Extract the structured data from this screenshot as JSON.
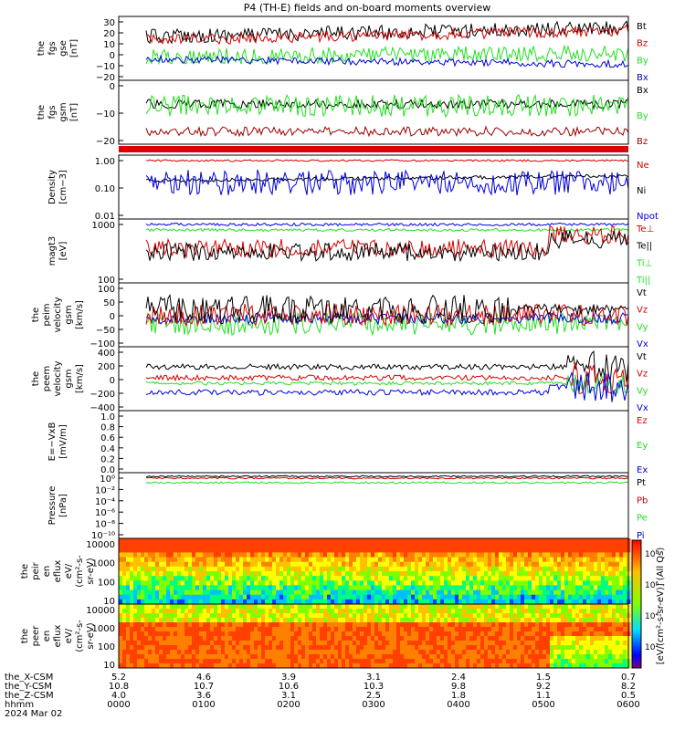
{
  "title": "P4 (TH-E) fields and on-board moments overview",
  "colors": {
    "black": "#000000",
    "red": "#d40000",
    "green": "#22e022",
    "blue": "#0000dd",
    "darkred": "#990000"
  },
  "chart_data": [
    {
      "type": "line",
      "ylabel": [
        "the",
        "fgs",
        "gse",
        "[nT]"
      ],
      "yticks": [
        "30",
        "20",
        "10",
        "0",
        "−10",
        "−20"
      ],
      "ylim": [
        -22,
        33
      ],
      "series": [
        {
          "name": "Bt",
          "color": "black"
        },
        {
          "name": "Bz",
          "color": "red"
        },
        {
          "name": "By",
          "color": "green"
        },
        {
          "name": "Bx",
          "color": "blue"
        }
      ]
    },
    {
      "type": "line",
      "ylabel": [
        "the",
        "fgs",
        "gsm",
        "[nT]"
      ],
      "yticks": [
        "0",
        "−10",
        "−20"
      ],
      "ylim": [
        -27,
        12
      ],
      "series": [
        {
          "name": "Bx",
          "color": "black"
        },
        {
          "name": "By",
          "color": "green"
        },
        {
          "name": "Bz",
          "color": "darkred"
        }
      ]
    },
    {
      "type": "line",
      "ylabel": [
        "Density",
        "[cm−3]"
      ],
      "yticks": [
        "1.00",
        "0.10",
        "0.01"
      ],
      "yscale": "log",
      "ylim": [
        0.004,
        4
      ],
      "series": [
        {
          "name": "Ne",
          "color": "red"
        },
        {
          "name": "Ni",
          "color": "black"
        },
        {
          "name": "Npot",
          "color": "blue"
        }
      ]
    },
    {
      "type": "line",
      "ylabel": [
        "magt3",
        "[eV]"
      ],
      "yticks": [
        "1000",
        "100"
      ],
      "yscale": "log",
      "ylim": [
        60,
        40000
      ],
      "series": [
        {
          "name": "Te⊥",
          "color": "red"
        },
        {
          "name": "Te||",
          "color": "black"
        },
        {
          "name": "Ti⊥",
          "color": "green"
        },
        {
          "name": "Ti||",
          "color": "green"
        }
      ]
    },
    {
      "type": "line",
      "ylabel": [
        "the",
        "peim",
        "velocity",
        "gsm",
        "[km/s]"
      ],
      "yticks": [
        "100",
        "50",
        "0",
        "−50",
        "−100"
      ],
      "ylim": [
        -110,
        140
      ],
      "series": [
        {
          "name": "Vt",
          "color": "black"
        },
        {
          "name": "Vz",
          "color": "red"
        },
        {
          "name": "Vy",
          "color": "green"
        },
        {
          "name": "Vx",
          "color": "blue"
        }
      ]
    },
    {
      "type": "line",
      "ylabel": [
        "the",
        "peem",
        "velocity",
        "gsm",
        "[km/s]"
      ],
      "yticks": [
        "400",
        "200",
        "0",
        "−200",
        "−400"
      ],
      "ylim": [
        -420,
        440
      ],
      "series": [
        {
          "name": "Vt",
          "color": "black"
        },
        {
          "name": "Vz",
          "color": "red"
        },
        {
          "name": "Vy",
          "color": "green"
        },
        {
          "name": "Vx",
          "color": "blue"
        }
      ]
    },
    {
      "type": "line",
      "ylabel": [
        "E=−VxB",
        "[mV/m]"
      ],
      "yticks": [
        "1.0",
        "0.8",
        "0.6",
        "0.4",
        "0.2",
        "0.0"
      ],
      "ylim": [
        0,
        1
      ],
      "series": [
        {
          "name": "Ez",
          "color": "red"
        },
        {
          "name": "Ey",
          "color": "green"
        },
        {
          "name": "Ex",
          "color": "blue"
        }
      ]
    },
    {
      "type": "line",
      "ylabel": [
        "Pressure",
        "[nPa]"
      ],
      "yticks": [
        "10⁰",
        "10⁻²",
        "10⁻⁴",
        "10⁻⁶",
        "10⁻⁸",
        "10⁻¹⁰"
      ],
      "yscale": "log",
      "series": [
        {
          "name": "Pt",
          "color": "black"
        },
        {
          "name": "Pb",
          "color": "red"
        },
        {
          "name": "Pe",
          "color": "green"
        },
        {
          "name": "Pi",
          "color": "blue"
        }
      ]
    },
    {
      "type": "heatmap",
      "ylabel": [
        "the",
        "peir",
        "en",
        "eflux",
        "eV/",
        "(cm²-s-",
        "sr-eV)"
      ],
      "yticks": [
        "10000",
        "1000",
        "100",
        "10"
      ],
      "yscale": "log"
    },
    {
      "type": "heatmap",
      "ylabel": [
        "the",
        "peer",
        "en",
        "eflux",
        "eV/",
        "(cm²-s-",
        "sr-eV)"
      ],
      "yticks": [
        "10000",
        "1000",
        "100",
        "10"
      ],
      "yscale": "log"
    }
  ],
  "colorbar": {
    "label": "[eV/(cm²-s-sr-eV)] (All Qs)",
    "ticks": [
      "10⁸",
      "10⁶",
      "10⁴",
      "10²"
    ]
  },
  "xaxis": {
    "rows": [
      {
        "label": "the_X-CSM",
        "values": [
          "5.2",
          "4.6",
          "3.9",
          "3.1",
          "2.4",
          "1.5",
          "0.7"
        ]
      },
      {
        "label": "the_Y-CSM",
        "values": [
          "10.8",
          "10.7",
          "10.6",
          "10.3",
          "9.8",
          "9.2",
          "8.2"
        ]
      },
      {
        "label": "the_Z-CSM",
        "values": [
          "4.0",
          "3.6",
          "3.1",
          "2.5",
          "1.8",
          "1.1",
          "0.5"
        ]
      },
      {
        "label": "hhmm",
        "values": [
          "0000",
          "0100",
          "0200",
          "0300",
          "0400",
          "0500",
          "0600"
        ]
      }
    ],
    "date": "2024 Mar 02"
  }
}
